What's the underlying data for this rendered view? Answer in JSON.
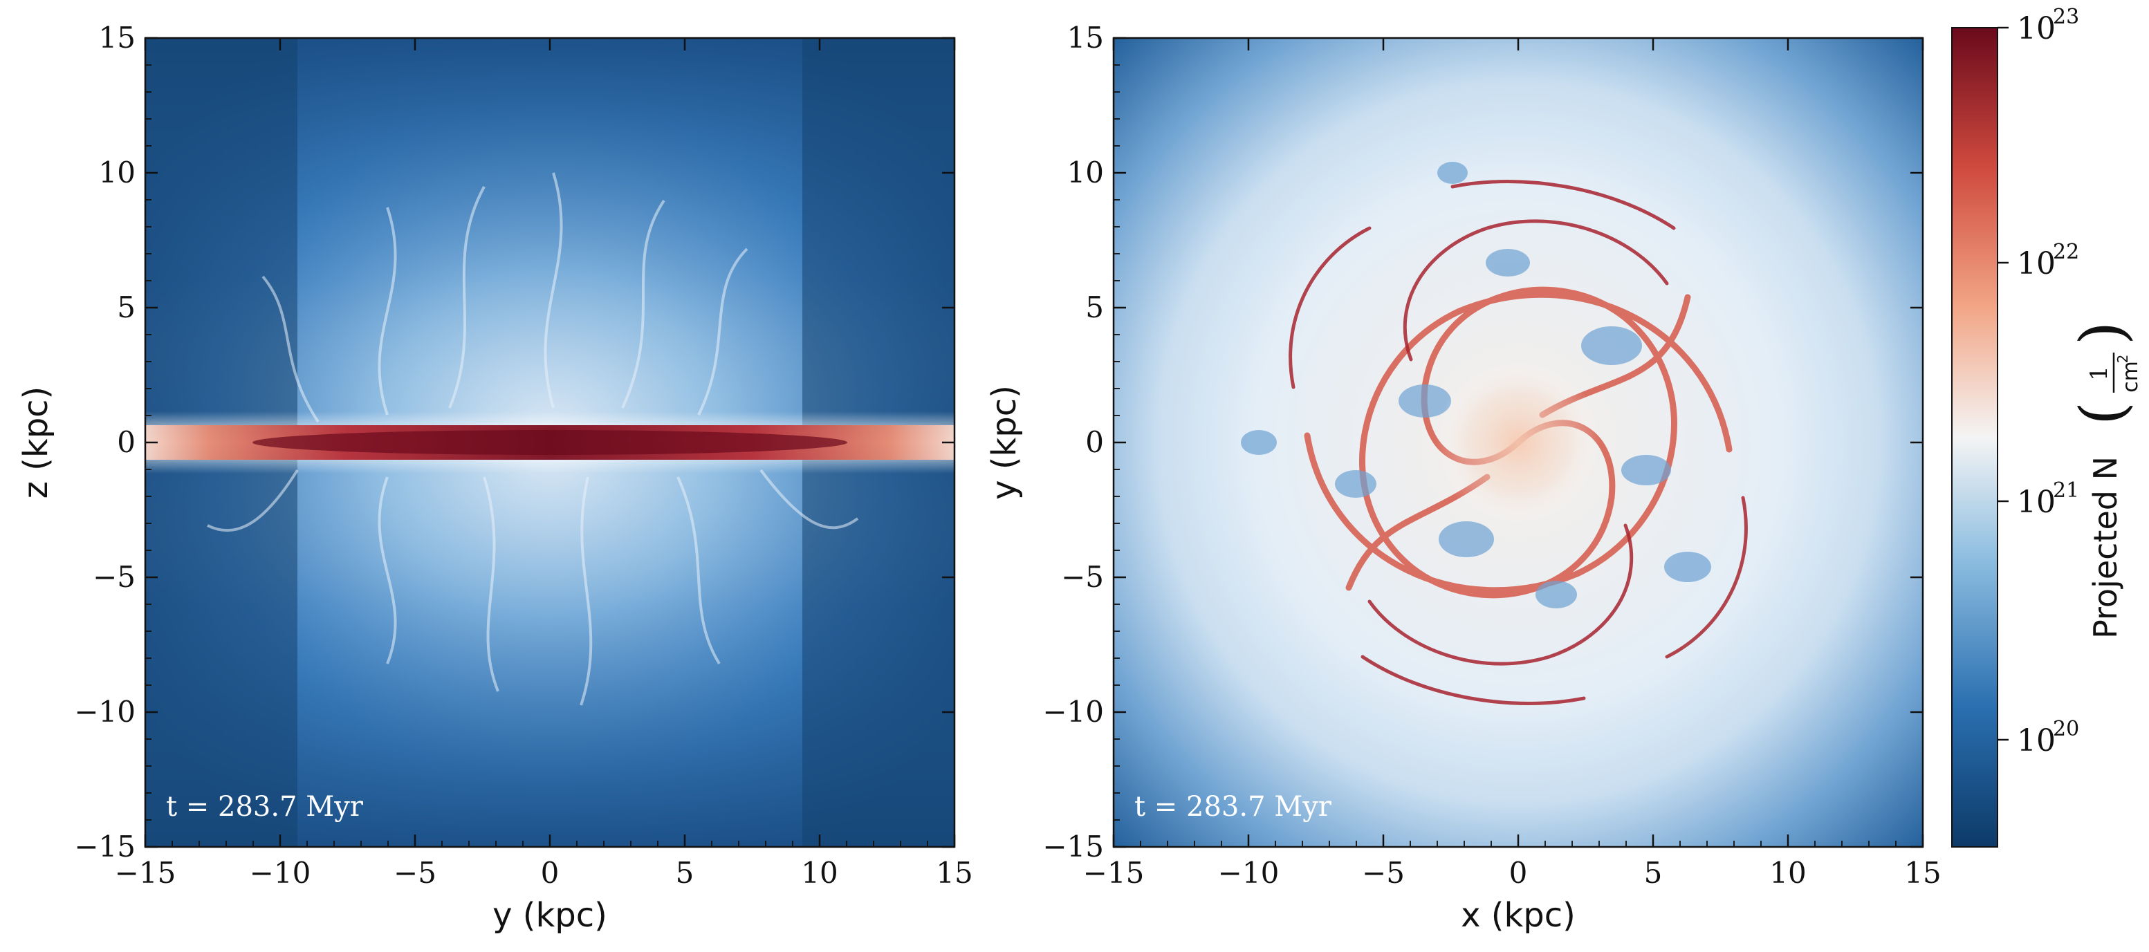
{
  "panels": [
    {
      "id": "edge-on",
      "xlabel": "y  (kpc)",
      "ylabel": "z  (kpc)",
      "time_label": "t = 283.7 Myr",
      "xticks": [
        "−15",
        "−10",
        "−5",
        "0",
        "5",
        "10",
        "15"
      ],
      "yticks": [
        "15",
        "10",
        "5",
        "0",
        "−5",
        "−10",
        "−15"
      ]
    },
    {
      "id": "face-on",
      "xlabel": "x  (kpc)",
      "ylabel": "y  (kpc)",
      "time_label": "t = 283.7 Myr",
      "xticks": [
        "−15",
        "−10",
        "−5",
        "0",
        "5",
        "10",
        "15"
      ],
      "yticks": [
        "15",
        "10",
        "5",
        "0",
        "−5",
        "−10",
        "−15"
      ]
    }
  ],
  "colorbar": {
    "label": "Projected N",
    "unit_numerator": "1",
    "unit_denominator": "cm",
    "unit_exponent": "2",
    "ticks": [
      {
        "base": "10",
        "exp": "23"
      },
      {
        "base": "10",
        "exp": "22"
      },
      {
        "base": "10",
        "exp": "21"
      },
      {
        "base": "10",
        "exp": "20"
      }
    ],
    "colormap": [
      "#0d3a68",
      "#2a6fb0",
      "#8cbde0",
      "#f4f4f4",
      "#f2a585",
      "#cf4a3e",
      "#7a0d1f"
    ]
  }
}
